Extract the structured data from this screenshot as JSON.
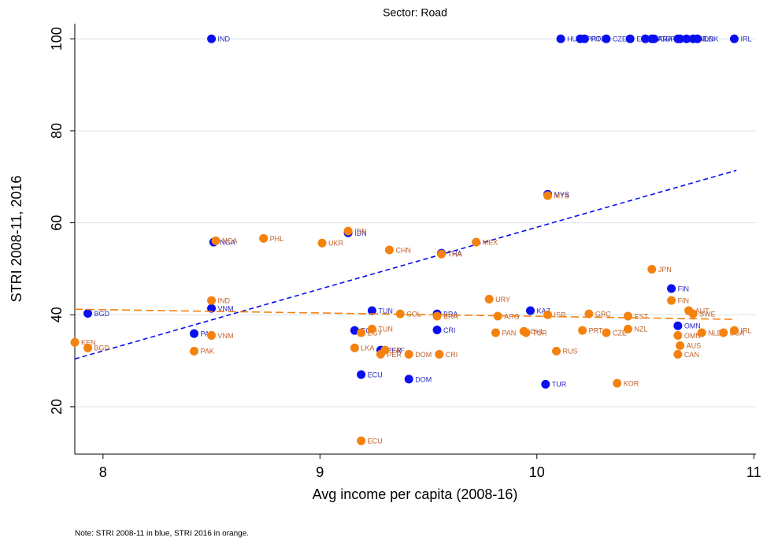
{
  "chart_data": {
    "type": "scatter",
    "title": "Sector: Road",
    "x_label": "Avg income per capita (2008-16)",
    "y_label": "STRI 2008-11, 2016",
    "note": "Note: STRI 2008-11 in blue, STRI 2016 in orange.",
    "xlim": [
      7.87,
      11.01
    ],
    "ylim": [
      9.7,
      103.3
    ],
    "xticks": [
      8,
      9,
      10,
      11
    ],
    "yticks": [
      20,
      40,
      60,
      80,
      100
    ],
    "grid": true,
    "series": [
      {
        "color": "#0a0ff0",
        "label_color": "#2a2ac8",
        "labels": [
          "IND",
          "BGD",
          "VNM",
          "PAK",
          "NGA",
          "IDN",
          "TUN",
          "EGY",
          "PER",
          "ECU",
          "DOM",
          "THA",
          "BRA",
          "CRI",
          "MYS",
          "KAZ",
          "TUR",
          "FIN",
          "OMN",
          "HUN",
          "PRT",
          "POL",
          "CZE",
          "ESP",
          "ITA",
          "FRA",
          "GBR",
          "DEU",
          "BEL",
          "AUT",
          "NLD",
          "DNK",
          "IRL"
        ],
        "x": [
          8.5,
          7.93,
          8.5,
          8.42,
          8.51,
          9.13,
          9.24,
          9.16,
          9.28,
          9.19,
          9.41,
          9.56,
          9.54,
          9.54,
          10.05,
          9.97,
          10.04,
          10.62,
          10.65,
          10.11,
          10.2,
          10.22,
          10.32,
          10.43,
          10.5,
          10.53,
          10.54,
          10.65,
          10.66,
          10.69,
          10.72,
          10.74,
          10.91
        ],
        "values": [
          100,
          40.3,
          41.4,
          35.9,
          55.8,
          57.8,
          40.9,
          36.6,
          32.3,
          27.0,
          26.0,
          53.4,
          40.2,
          36.7,
          66.2,
          40.9,
          24.9,
          45.7,
          37.6,
          100,
          100,
          100,
          100,
          100,
          100,
          100,
          100,
          100,
          100,
          100,
          100,
          100,
          100
        ],
        "fit": {
          "x": [
            7.87,
            10.92
          ],
          "values": [
            30.4,
            71.4
          ]
        }
      },
      {
        "color": "#f5820f",
        "label_color": "#c0602a",
        "labels": [
          "KEN",
          "BGD",
          "PAK",
          "VNM",
          "IND",
          "NGA",
          "PHL",
          "UKR",
          "IDN",
          "CHN",
          "THA",
          "MEX",
          "LKA",
          "EGY",
          "TUN",
          "PER",
          "ZAF",
          "DOM",
          "COL",
          "CRI",
          "BRA",
          "URY",
          "ARG",
          "PAN",
          "CHL",
          "TUR",
          "MYS",
          "RUS",
          "ISR",
          "GRC",
          "PRT",
          "CZE",
          "KOR",
          "NZL",
          "EST",
          "JPN",
          "FIN",
          "AUT",
          "SWE",
          "OMN",
          "AUS",
          "CAN",
          "NLD",
          "USA",
          "IRL",
          "ECU"
        ],
        "x": [
          7.87,
          7.93,
          8.42,
          8.5,
          8.5,
          8.52,
          8.74,
          9.01,
          9.13,
          9.32,
          9.56,
          9.72,
          9.16,
          9.19,
          9.24,
          9.28,
          9.3,
          9.41,
          9.37,
          9.55,
          9.54,
          9.78,
          9.82,
          9.81,
          9.94,
          9.95,
          10.05,
          10.09,
          10.05,
          10.24,
          10.21,
          10.32,
          10.37,
          10.42,
          10.42,
          10.53,
          10.62,
          10.7,
          10.72,
          10.65,
          10.66,
          10.65,
          10.76,
          10.86,
          10.91,
          9.19
        ],
        "values": [
          34.0,
          32.8,
          32.1,
          35.5,
          43.1,
          56.1,
          56.6,
          55.6,
          58.2,
          54.1,
          53.2,
          55.8,
          32.8,
          36.1,
          36.9,
          31.4,
          32.3,
          31.4,
          40.2,
          31.4,
          39.7,
          43.4,
          39.7,
          36.1,
          36.4,
          36.1,
          65.9,
          32.1,
          40.0,
          40.2,
          36.6,
          36.1,
          25.1,
          36.9,
          39.7,
          49.9,
          43.1,
          40.9,
          40.2,
          35.5,
          33.3,
          31.4,
          36.1,
          36.1,
          36.6,
          12.6
        ],
        "fit": {
          "x": [
            7.87,
            10.92
          ],
          "values": [
            41.2,
            39.0
          ]
        }
      }
    ]
  }
}
